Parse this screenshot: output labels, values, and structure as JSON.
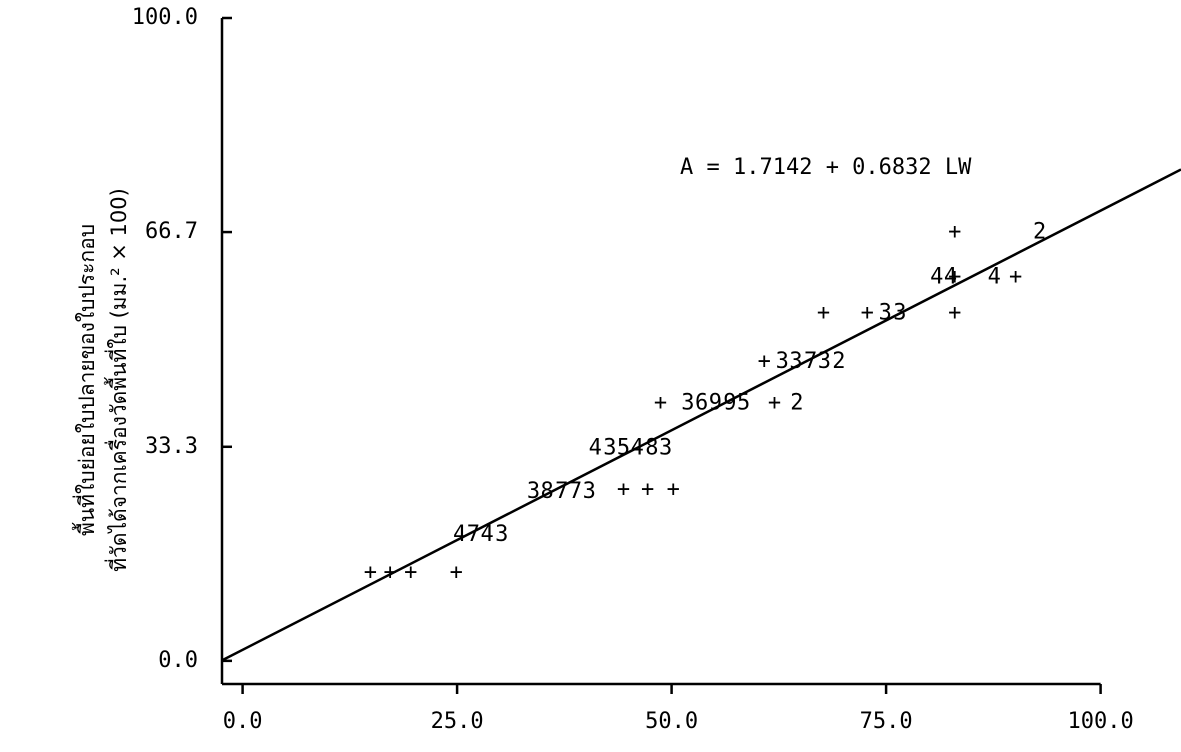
{
  "chart_data": {
    "type": "scatter",
    "y_label_lines": [
      "พื้นที่ใบย่อยใบปลายของใบประกอบ",
      "ที่วัดได้จากเครื่องวัดพื้นที่ใบ (มม.² × 100)"
    ],
    "annotation": "A = 1.7142 + 0.6832 LW",
    "regression": {
      "intercept": 1.7142,
      "slope": 0.6832
    },
    "x": [
      14.9,
      17.2,
      19.6,
      24.9,
      44.4,
      47.2,
      50.2,
      48.7,
      62.0,
      60.8,
      67.7,
      72.8,
      83.0,
      83.0,
      83.0,
      90.1,
      25.3,
      26.9,
      28.5,
      30.2,
      33.9,
      35.5,
      37.2,
      38.8,
      40.4,
      41.1,
      42.8,
      44.4,
      46.0,
      47.7,
      49.3,
      51.9,
      53.5,
      55.1,
      56.8,
      58.4,
      64.6,
      62.9,
      64.5,
      66.2,
      67.8,
      69.5,
      74.9,
      76.6,
      80.9,
      82.5,
      87.6,
      92.9
    ],
    "values": [
      13.7,
      13.7,
      13.7,
      13.7,
      26.6,
      26.6,
      26.6,
      40.0,
      40.0,
      46.5,
      54.0,
      54.0,
      54.0,
      66.6,
      59.6,
      59.6,
      19.6,
      19.6,
      19.6,
      19.6,
      26.3,
      26.3,
      26.3,
      26.3,
      26.3,
      33.0,
      33.0,
      33.0,
      33.0,
      33.0,
      33.0,
      40.0,
      40.0,
      40.0,
      40.0,
      40.0,
      40.0,
      46.5,
      46.5,
      46.5,
      46.5,
      46.5,
      54.0,
      54.0,
      59.6,
      59.6,
      59.6,
      66.6
    ],
    "symbols": [
      "+",
      "+",
      "+",
      "+",
      "+",
      "+",
      "+",
      "+",
      "+",
      "+",
      "+",
      "+",
      "+",
      "+",
      "+",
      "+",
      "4",
      "7",
      "4",
      "3",
      "3",
      "8",
      "7",
      "7",
      "3",
      "4",
      "3",
      "5",
      "4",
      "8",
      "3",
      "3",
      "6",
      "9",
      "9",
      "5",
      "2",
      "3",
      "3",
      "7",
      "3",
      "2",
      "3",
      "3",
      "4",
      "4",
      "4",
      "2"
    ],
    "color": "#000000",
    "xlim": [
      -2.4,
      100
    ],
    "ylim": [
      -3.6,
      100
    ],
    "xticks": [
      {
        "value": 0,
        "label": "0.0"
      },
      {
        "value": 25,
        "label": "25.0"
      },
      {
        "value": 50,
        "label": "50.0"
      },
      {
        "value": 75,
        "label": "75.0"
      },
      {
        "value": 100,
        "label": "100.0"
      }
    ],
    "yticks": [
      {
        "value": 0,
        "label": "0.0"
      },
      33.3,
      66.7,
      {
        "value": 100,
        "label": "100.0"
      }
    ]
  }
}
